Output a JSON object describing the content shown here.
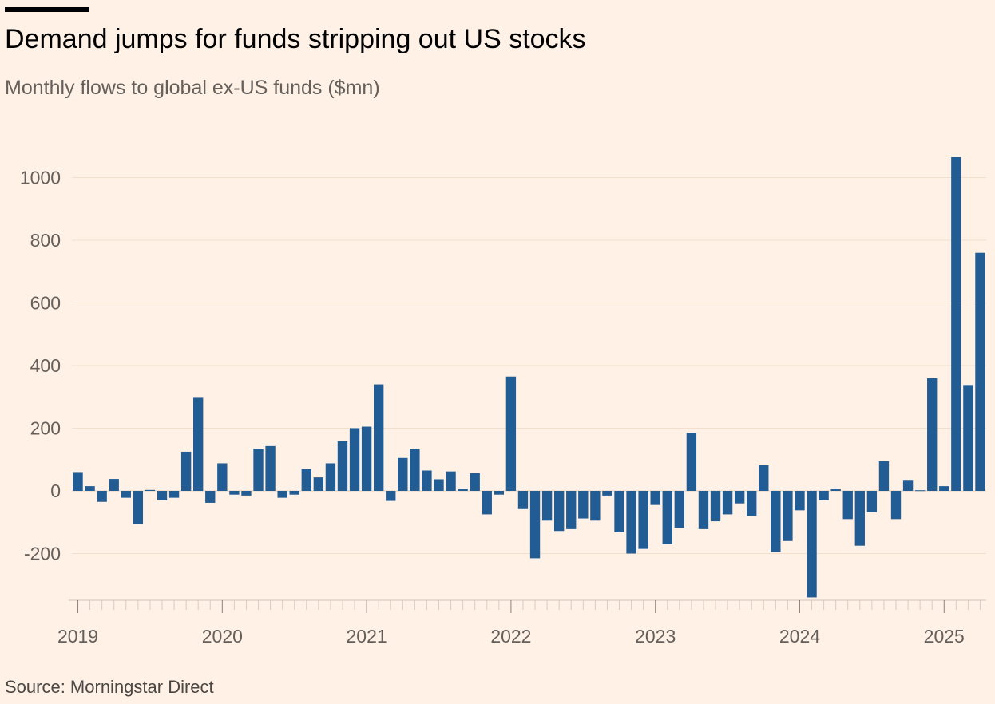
{
  "title": "Demand jumps for funds stripping out US stocks",
  "subtitle": "Monthly flows to global ex-US funds ($mn)",
  "source": "Source: Morningstar Direct",
  "colors": {
    "background": "#FFF1E5",
    "bar": "#225C94",
    "grid": "#F2DFCE",
    "text": "#66605C"
  },
  "chart_data": {
    "type": "bar",
    "title": "Demand jumps for funds stripping out US stocks",
    "subtitle": "Monthly flows to global ex-US funds ($mn)",
    "ylabel": "",
    "xlabel": "",
    "ylim": [
      -340,
      1070
    ],
    "yticks": [
      -200,
      0,
      200,
      400,
      600,
      800,
      1000
    ],
    "ytick_labels": [
      "-200",
      "0",
      "200",
      "400",
      "600",
      "800",
      "1000"
    ],
    "year_labels": [
      "2019",
      "2020",
      "2021",
      "2022",
      "2023",
      "2024",
      "2025"
    ],
    "grid": true,
    "categories": [
      "2019-01",
      "2019-02",
      "2019-03",
      "2019-04",
      "2019-05",
      "2019-06",
      "2019-07",
      "2019-08",
      "2019-09",
      "2019-10",
      "2019-11",
      "2019-12",
      "2020-01",
      "2020-02",
      "2020-03",
      "2020-04",
      "2020-05",
      "2020-06",
      "2020-07",
      "2020-08",
      "2020-09",
      "2020-10",
      "2020-11",
      "2020-12",
      "2021-01",
      "2021-02",
      "2021-03",
      "2021-04",
      "2021-05",
      "2021-06",
      "2021-07",
      "2021-08",
      "2021-09",
      "2021-10",
      "2021-11",
      "2021-12",
      "2022-01",
      "2022-02",
      "2022-03",
      "2022-04",
      "2022-05",
      "2022-06",
      "2022-07",
      "2022-08",
      "2022-09",
      "2022-10",
      "2022-11",
      "2022-12",
      "2023-01",
      "2023-02",
      "2023-03",
      "2023-04",
      "2023-05",
      "2023-06",
      "2023-07",
      "2023-08",
      "2023-09",
      "2023-10",
      "2023-11",
      "2023-12",
      "2024-01",
      "2024-02",
      "2024-03",
      "2024-04",
      "2024-05",
      "2024-06",
      "2024-07",
      "2024-08",
      "2024-09",
      "2024-10",
      "2024-11",
      "2024-12",
      "2025-01",
      "2025-02",
      "2025-03",
      "2025-04"
    ],
    "values": [
      60,
      15,
      -35,
      38,
      -22,
      -105,
      3,
      -30,
      -22,
      125,
      297,
      -38,
      88,
      -12,
      -15,
      135,
      143,
      -22,
      -12,
      70,
      43,
      88,
      158,
      200,
      205,
      340,
      -32,
      105,
      135,
      65,
      37,
      62,
      5,
      57,
      -75,
      -12,
      365,
      -58,
      -215,
      -95,
      -128,
      -122,
      -88,
      -95,
      -15,
      -132,
      -200,
      -185,
      -45,
      -170,
      -118,
      185,
      -122,
      -97,
      -75,
      -40,
      -80,
      82,
      -195,
      -160,
      -62,
      -340,
      -30,
      5,
      -90,
      -175,
      -68,
      95,
      -90,
      35,
      2,
      360,
      15,
      1065,
      338,
      760
    ]
  }
}
